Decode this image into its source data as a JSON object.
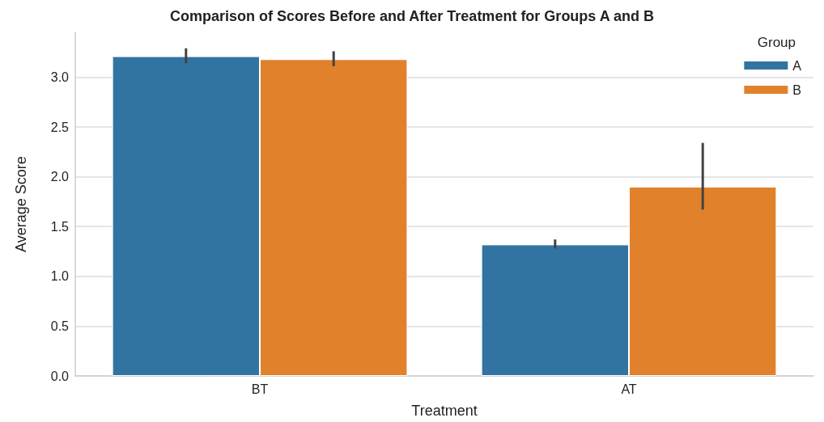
{
  "chart_data": {
    "type": "bar",
    "title": "Comparison of Scores Before and After Treatment for Groups A and B",
    "xlabel": "Treatment",
    "ylabel": "Average Score",
    "legend_title": "Group",
    "categories": [
      "BT",
      "AT"
    ],
    "series": [
      {
        "name": "A",
        "color": "#3274a1",
        "values": [
          3.21,
          1.32
        ],
        "errors": [
          [
            3.14,
            3.29
          ],
          [
            1.28,
            1.37
          ]
        ]
      },
      {
        "name": "B",
        "color": "#e1812c",
        "values": [
          3.18,
          1.9
        ],
        "errors": [
          [
            3.11,
            3.26
          ],
          [
            1.67,
            2.34
          ]
        ]
      }
    ],
    "ylim": [
      0,
      3.45
    ],
    "yticks": [
      {
        "value": 0,
        "label": "0.0"
      },
      {
        "value": 0.5,
        "label": "0.5"
      },
      {
        "value": 1,
        "label": "1.0"
      },
      {
        "value": 1.5,
        "label": "1.5"
      },
      {
        "value": 2,
        "label": "2.0"
      },
      {
        "value": 2.5,
        "label": "2.5"
      },
      {
        "value": 3,
        "label": "3.0"
      }
    ],
    "grid": "y",
    "legend": "top right"
  }
}
